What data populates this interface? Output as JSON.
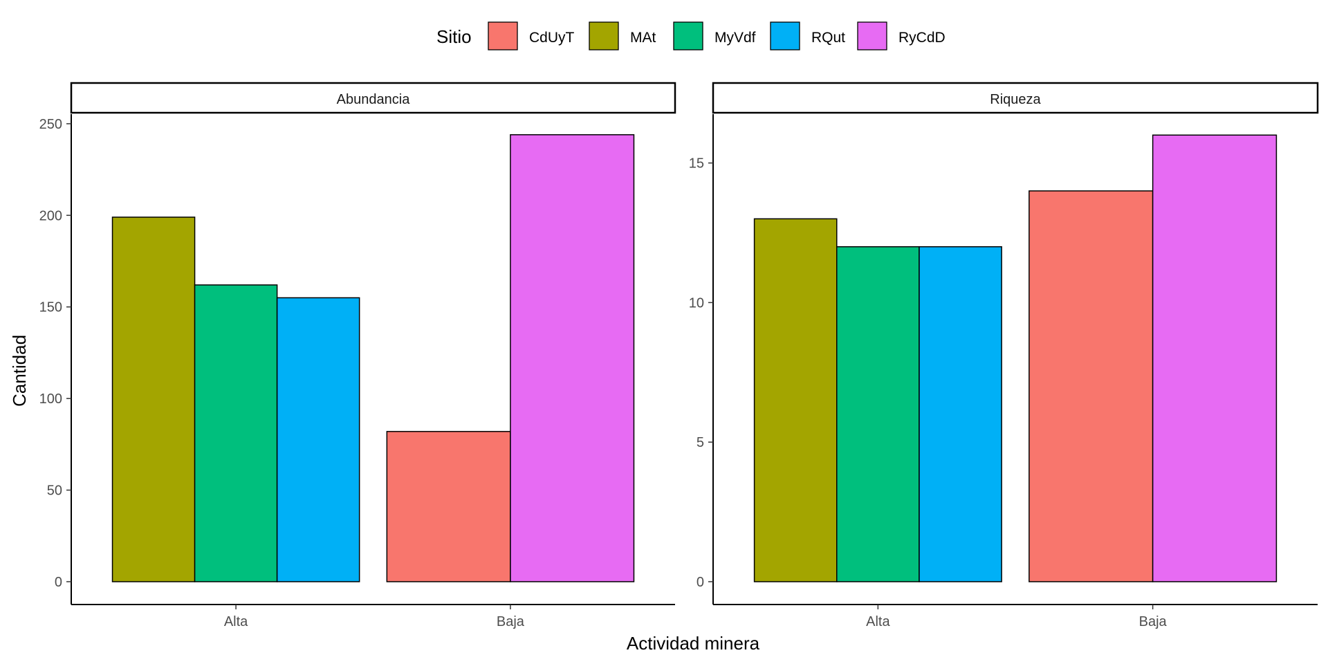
{
  "chart_data": {
    "type": "bar",
    "xlabel": "Actividad minera",
    "ylabel": "Cantidad",
    "legend": {
      "title": "Sitio",
      "position": "top",
      "entries": [
        {
          "name": "CdUyT",
          "color": "#F8766D"
        },
        {
          "name": "MAt",
          "color": "#A3A500"
        },
        {
          "name": "MyVdf",
          "color": "#00BF7D"
        },
        {
          "name": "RQut",
          "color": "#00B0F6"
        },
        {
          "name": "RyCdD",
          "color": "#E76BF3"
        }
      ]
    },
    "grid": false,
    "panels": [
      {
        "strip": "Abundancia",
        "ylim": [
          0,
          256
        ],
        "yticks": [
          0,
          50,
          100,
          150,
          200,
          250
        ],
        "categories": [
          "Alta",
          "Baja"
        ],
        "groups": [
          {
            "category": "Alta",
            "bars": [
              {
                "series": "MAt",
                "value": 199
              },
              {
                "series": "MyVdf",
                "value": 162
              },
              {
                "series": "RQut",
                "value": 155
              }
            ]
          },
          {
            "category": "Baja",
            "bars": [
              {
                "series": "CdUyT",
                "value": 82
              },
              {
                "series": "RyCdD",
                "value": 244
              }
            ]
          }
        ]
      },
      {
        "strip": "Riqueza",
        "ylim": [
          0,
          16.8
        ],
        "yticks": [
          0,
          5,
          10,
          15
        ],
        "categories": [
          "Alta",
          "Baja"
        ],
        "groups": [
          {
            "category": "Alta",
            "bars": [
              {
                "series": "MAt",
                "value": 13
              },
              {
                "series": "MyVdf",
                "value": 12
              },
              {
                "series": "RQut",
                "value": 12
              }
            ]
          },
          {
            "category": "Baja",
            "bars": [
              {
                "series": "CdUyT",
                "value": 14
              },
              {
                "series": "RyCdD",
                "value": 16
              }
            ]
          }
        ]
      }
    ]
  }
}
